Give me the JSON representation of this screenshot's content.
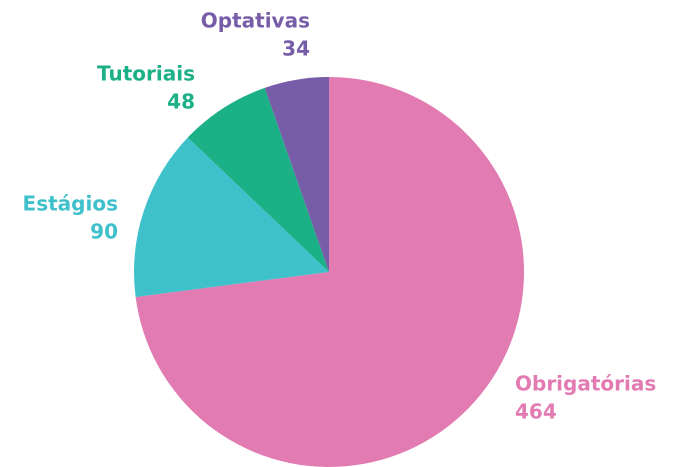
{
  "chart_data": {
    "type": "pie",
    "categories": [
      "Obrigatórias",
      "Estágios",
      "Tutoriais",
      "Optativas"
    ],
    "values": [
      464,
      90,
      48,
      34
    ],
    "colors": [
      "#e27bb2",
      "#3fc1cb",
      "#1bb086",
      "#775ca8"
    ]
  }
}
